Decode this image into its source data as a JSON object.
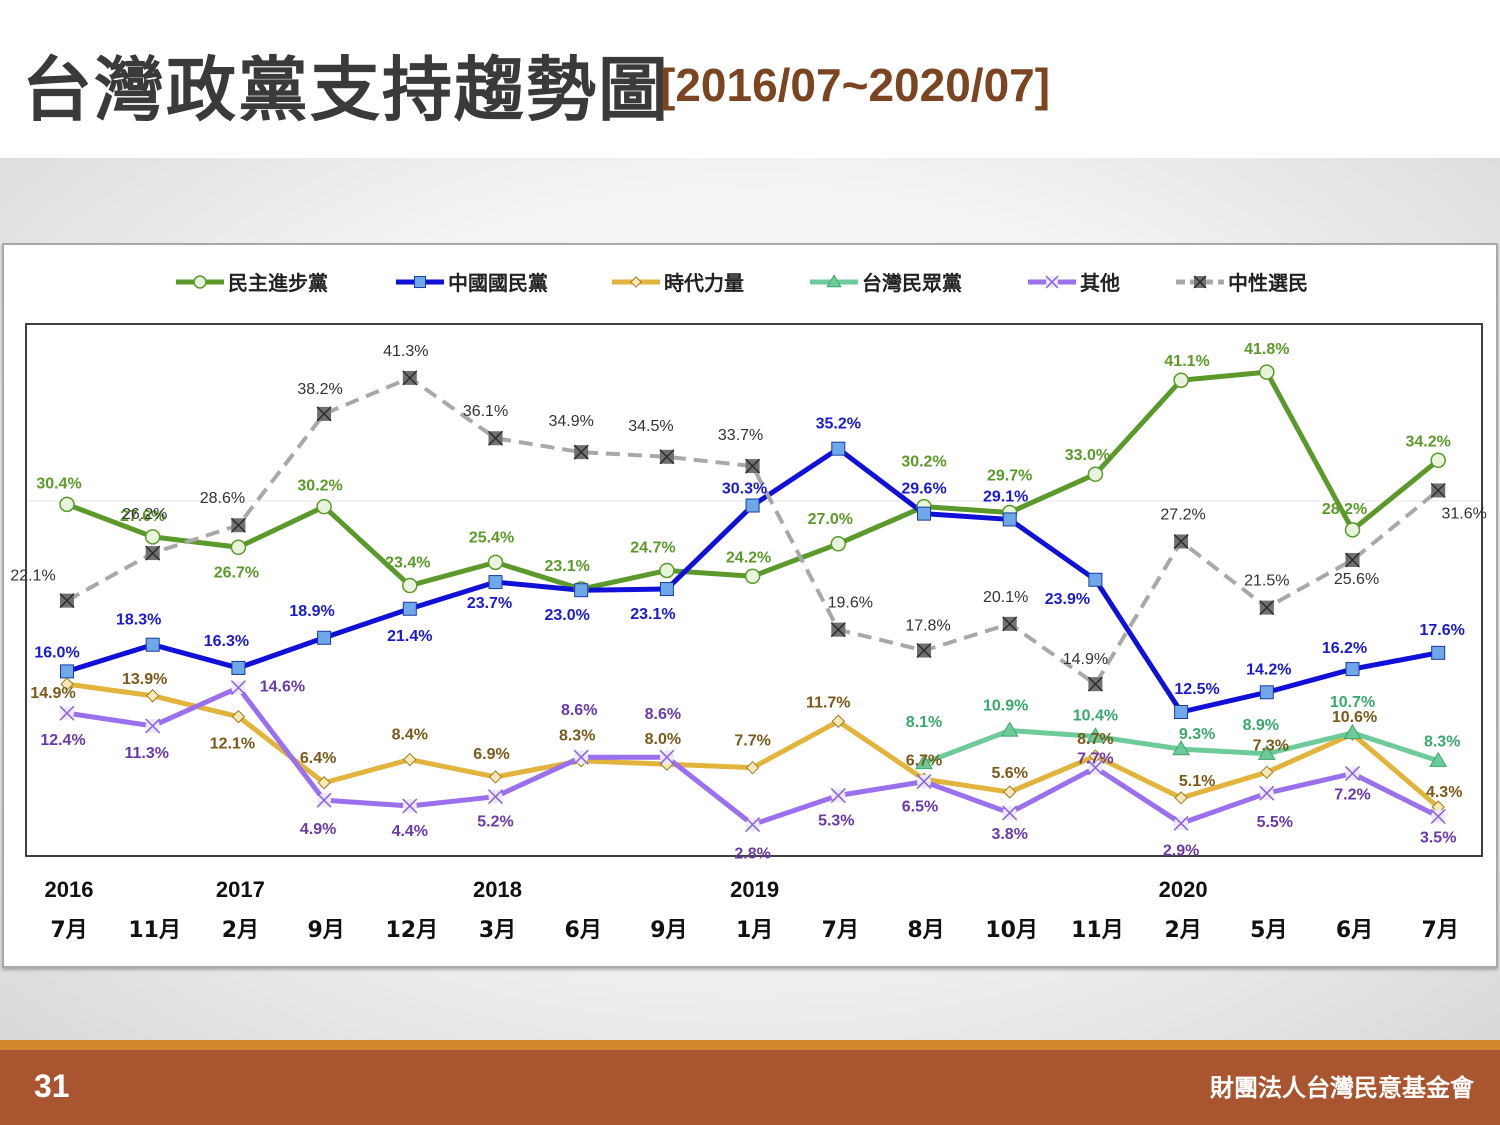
{
  "title": "台灣政黨支持趨勢圖",
  "subtitle": "[2016/07~2020/07]",
  "page_number": "31",
  "organization": "財團法人台灣民意基金會",
  "chart_data": {
    "type": "line",
    "categories": [
      "7月",
      "11月",
      "2月",
      "9月",
      "12月",
      "3月",
      "6月",
      "9月",
      "1月",
      "7月",
      "8月",
      "10月",
      "11月",
      "2月",
      "5月",
      "6月",
      "7月"
    ],
    "year_labels": [
      {
        "label": "2016",
        "index": 0
      },
      {
        "label": "2017",
        "index": 2
      },
      {
        "label": "2018",
        "index": 5
      },
      {
        "label": "2019",
        "index": 8
      },
      {
        "label": "2020",
        "index": 13
      }
    ],
    "legend_position": "top",
    "grid": false,
    "ylim": [
      0,
      50
    ],
    "series": [
      {
        "name": "民主進步黨",
        "color": "#5b9a2a",
        "label_color": "#5b9a2a",
        "marker": "circle",
        "dashed": false,
        "values": [
          30.4,
          27.6,
          26.7,
          30.2,
          23.4,
          25.4,
          23.1,
          24.7,
          24.2,
          27.0,
          30.2,
          29.7,
          33.0,
          41.1,
          41.8,
          28.2,
          34.2
        ],
        "labels": [
          "30.4%",
          "27.6%",
          "26.7%",
          "30.2%",
          "23.4%",
          "25.4%",
          "23.1%",
          "24.7%",
          "24.2%",
          "27.0%",
          "30.2%",
          "29.7%",
          "33.0%",
          "41.1%",
          "41.8%",
          "28.2%",
          "34.2%"
        ]
      },
      {
        "name": "中國國民黨",
        "color": "#1010d8",
        "label_color": "#1a1ad0",
        "marker": "square",
        "dashed": false,
        "values": [
          16.0,
          18.3,
          16.3,
          18.9,
          21.4,
          23.7,
          23.0,
          23.1,
          30.3,
          35.2,
          29.6,
          29.1,
          23.9,
          12.5,
          14.2,
          16.2,
          17.6
        ],
        "labels": [
          "16.0%",
          "18.3%",
          "16.3%",
          "18.9%",
          "21.4%",
          "23.7%",
          "23.0%",
          "23.1%",
          "30.3%",
          "35.2%",
          "29.6%",
          "29.1%",
          "23.9%",
          "12.5%",
          "14.2%",
          "16.2%",
          "17.6%"
        ]
      },
      {
        "name": "時代力量",
        "color": "#e2b43c",
        "label_color": "#7a5a1a",
        "marker": "diamond",
        "dashed": false,
        "values": [
          14.9,
          13.9,
          12.1,
          6.4,
          8.4,
          6.9,
          8.3,
          8.0,
          7.7,
          11.7,
          6.7,
          5.6,
          8.7,
          5.1,
          7.3,
          10.6,
          4.3
        ],
        "labels": [
          "14.9%",
          "13.9%",
          "12.1%",
          "6.4%",
          "8.4%",
          "6.9%",
          "8.3%",
          "8.0%",
          "7.7%",
          "11.7%",
          "6.7%",
          "5.6%",
          "8.7%",
          "5.1%",
          "7.3%",
          "10.6%",
          "4.3%"
        ]
      },
      {
        "name": "台灣民眾黨",
        "color": "#6ccb98",
        "label_color": "#3aa86c",
        "marker": "triangle",
        "dashed": false,
        "start_index": 10,
        "values": [
          null,
          null,
          null,
          null,
          null,
          null,
          null,
          null,
          null,
          null,
          8.1,
          10.9,
          10.4,
          9.3,
          8.9,
          10.7,
          8.3
        ],
        "labels": [
          "",
          "",
          "",
          "",
          "",
          "",
          "",
          "",
          "",
          "",
          "8.1%",
          "10.9%",
          "10.4%",
          "9.3%",
          "8.9%",
          "10.7%",
          "8.3%"
        ]
      },
      {
        "name": "其他",
        "color": "#9a70ee",
        "label_color": "#6a3aa8",
        "marker": "x",
        "dashed": false,
        "values": [
          12.4,
          11.3,
          14.6,
          4.9,
          4.4,
          5.2,
          8.6,
          8.6,
          2.8,
          5.3,
          6.5,
          3.8,
          7.7,
          2.9,
          5.5,
          7.2,
          3.5
        ],
        "labels": [
          "12.4%",
          "11.3%",
          "14.6%",
          "4.9%",
          "4.4%",
          "5.2%",
          "8.6%",
          "8.6%",
          "2.8%",
          "5.3%",
          "6.5%",
          "3.8%",
          "7.7%",
          "2.9%",
          "5.5%",
          "7.2%",
          "3.5%"
        ]
      },
      {
        "name": "中性選民",
        "color": "#a8a8a8",
        "label_color": "#333333",
        "marker": "xsquare",
        "dashed": true,
        "values": [
          22.1,
          26.2,
          28.6,
          38.2,
          41.3,
          36.1,
          34.9,
          34.5,
          33.7,
          19.6,
          17.8,
          20.1,
          14.9,
          27.2,
          21.5,
          25.6,
          31.6
        ],
        "labels": [
          "22.1%",
          "26.2%",
          "28.6%",
          "38.2%",
          "41.3%",
          "36.1%",
          "34.9%",
          "34.5%",
          "33.7%",
          "19.6%",
          "17.8%",
          "20.1%",
          "14.9%",
          "27.2%",
          "21.5%",
          "25.6%",
          "31.6%"
        ]
      }
    ]
  }
}
